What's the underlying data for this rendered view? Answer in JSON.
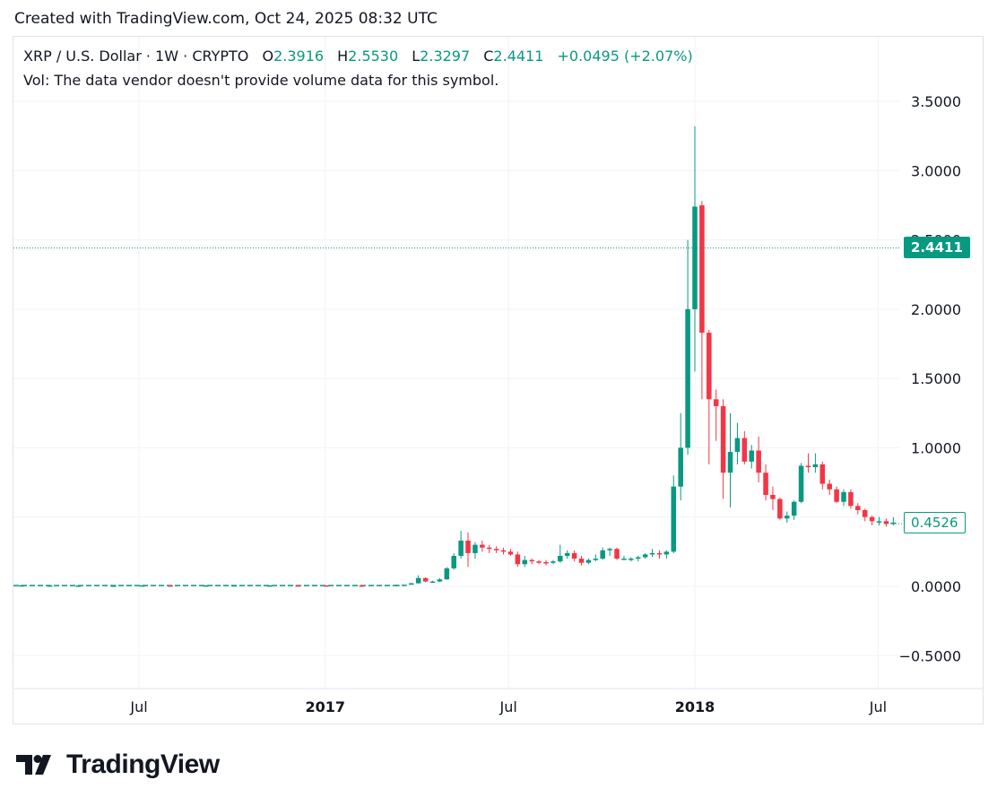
{
  "header": {
    "created_text": "Created with TradingView.com, Oct 24, 2025 08:32 UTC"
  },
  "legend": {
    "symbol": "XRP / U.S. Dollar · 1W · CRYPTO",
    "o_label": "O",
    "o_value": "2.3916",
    "h_label": "H",
    "h_value": "2.5530",
    "l_label": "L",
    "l_value": "2.3297",
    "c_label": "C",
    "c_value": "2.4411",
    "change": "+0.0495 (+2.07%)",
    "volume_note": "Vol: The data vendor doesn't provide volume data for this symbol."
  },
  "badges": {
    "last_price": "2.4411",
    "current_price": "0.4526"
  },
  "logo": {
    "text": "TradingView"
  },
  "colors": {
    "up": "#089981",
    "down": "#F23645",
    "grid": "#f0f3fa",
    "text": "#131722"
  },
  "chart_data": {
    "type": "candlestick",
    "ylim": [
      -0.75,
      3.85
    ],
    "y_ticks": [
      "3.5000",
      "3.0000",
      "2.5000",
      "2.0000",
      "1.5000",
      "1.0000",
      "0.5000",
      "0.0000",
      "−0.5000"
    ],
    "y_tick_values": [
      3.5,
      3.0,
      2.5,
      2.0,
      1.5,
      1.0,
      0.5,
      0.0,
      -0.5
    ],
    "x_ticks": [
      {
        "label": "Jul",
        "date": "2016-07-01",
        "bold": false
      },
      {
        "label": "2017",
        "date": "2017-01-01",
        "bold": true
      },
      {
        "label": "Jul",
        "date": "2017-07-01",
        "bold": false
      },
      {
        "label": "2018",
        "date": "2018-01-01",
        "bold": true
      },
      {
        "label": "Jul",
        "date": "2018-07-01",
        "bold": false
      }
    ],
    "last_price_line": 2.4411,
    "current_price": 0.4526,
    "candles": [
      {
        "d": "2016-01-04",
        "o": 0.006,
        "h": 0.006,
        "l": 0.005,
        "c": 0.006
      },
      {
        "d": "2016-02-01",
        "o": 0.006,
        "h": 0.006,
        "l": 0.005,
        "c": 0.005
      },
      {
        "d": "2016-03-07",
        "o": 0.008,
        "h": 0.009,
        "l": 0.007,
        "c": 0.008
      },
      {
        "d": "2016-04-04",
        "o": 0.007,
        "h": 0.008,
        "l": 0.006,
        "c": 0.007
      },
      {
        "d": "2016-05-02",
        "o": 0.006,
        "h": 0.007,
        "l": 0.005,
        "c": 0.006
      },
      {
        "d": "2016-06-06",
        "o": 0.006,
        "h": 0.007,
        "l": 0.005,
        "c": 0.006
      },
      {
        "d": "2016-07-04",
        "o": 0.006,
        "h": 0.007,
        "l": 0.006,
        "c": 0.007
      },
      {
        "d": "2016-08-01",
        "o": 0.007,
        "h": 0.007,
        "l": 0.006,
        "c": 0.006
      },
      {
        "d": "2016-09-05",
        "o": 0.007,
        "h": 0.008,
        "l": 0.006,
        "c": 0.007
      },
      {
        "d": "2016-10-03",
        "o": 0.008,
        "h": 0.009,
        "l": 0.007,
        "c": 0.008
      },
      {
        "d": "2016-11-07",
        "o": 0.007,
        "h": 0.008,
        "l": 0.007,
        "c": 0.007
      },
      {
        "d": "2016-12-05",
        "o": 0.007,
        "h": 0.007,
        "l": 0.006,
        "c": 0.006
      },
      {
        "d": "2017-01-02",
        "o": 0.007,
        "h": 0.007,
        "l": 0.006,
        "c": 0.006
      },
      {
        "d": "2017-02-06",
        "o": 0.007,
        "h": 0.007,
        "l": 0.006,
        "c": 0.006
      },
      {
        "d": "2017-03-13",
        "o": 0.01,
        "h": 0.012,
        "l": 0.008,
        "c": 0.011
      },
      {
        "d": "2017-03-20",
        "o": 0.011,
        "h": 0.013,
        "l": 0.009,
        "c": 0.012
      },
      {
        "d": "2017-03-27",
        "o": 0.012,
        "h": 0.025,
        "l": 0.011,
        "c": 0.022
      },
      {
        "d": "2017-04-03",
        "o": 0.022,
        "h": 0.08,
        "l": 0.02,
        "c": 0.06
      },
      {
        "d": "2017-04-10",
        "o": 0.06,
        "h": 0.065,
        "l": 0.03,
        "c": 0.035
      },
      {
        "d": "2017-04-17",
        "o": 0.035,
        "h": 0.04,
        "l": 0.03,
        "c": 0.035
      },
      {
        "d": "2017-04-24",
        "o": 0.035,
        "h": 0.06,
        "l": 0.03,
        "c": 0.05
      },
      {
        "d": "2017-05-01",
        "o": 0.05,
        "h": 0.14,
        "l": 0.048,
        "c": 0.13
      },
      {
        "d": "2017-05-08",
        "o": 0.13,
        "h": 0.24,
        "l": 0.12,
        "c": 0.22
      },
      {
        "d": "2017-05-15",
        "o": 0.22,
        "h": 0.4,
        "l": 0.2,
        "c": 0.33
      },
      {
        "d": "2017-05-22",
        "o": 0.33,
        "h": 0.39,
        "l": 0.14,
        "c": 0.24
      },
      {
        "d": "2017-05-29",
        "o": 0.24,
        "h": 0.32,
        "l": 0.2,
        "c": 0.3
      },
      {
        "d": "2017-06-05",
        "o": 0.3,
        "h": 0.33,
        "l": 0.25,
        "c": 0.28
      },
      {
        "d": "2017-06-12",
        "o": 0.28,
        "h": 0.3,
        "l": 0.24,
        "c": 0.27
      },
      {
        "d": "2017-06-19",
        "o": 0.27,
        "h": 0.29,
        "l": 0.24,
        "c": 0.26
      },
      {
        "d": "2017-06-26",
        "o": 0.26,
        "h": 0.28,
        "l": 0.23,
        "c": 0.25
      },
      {
        "d": "2017-07-03",
        "o": 0.25,
        "h": 0.27,
        "l": 0.22,
        "c": 0.23
      },
      {
        "d": "2017-07-10",
        "o": 0.23,
        "h": 0.25,
        "l": 0.14,
        "c": 0.16
      },
      {
        "d": "2017-07-17",
        "o": 0.16,
        "h": 0.22,
        "l": 0.14,
        "c": 0.19
      },
      {
        "d": "2017-07-24",
        "o": 0.19,
        "h": 0.2,
        "l": 0.16,
        "c": 0.18
      },
      {
        "d": "2017-07-31",
        "o": 0.18,
        "h": 0.19,
        "l": 0.16,
        "c": 0.175
      },
      {
        "d": "2017-08-07",
        "o": 0.175,
        "h": 0.19,
        "l": 0.15,
        "c": 0.17
      },
      {
        "d": "2017-08-14",
        "o": 0.17,
        "h": 0.19,
        "l": 0.16,
        "c": 0.18
      },
      {
        "d": "2017-08-21",
        "o": 0.18,
        "h": 0.3,
        "l": 0.17,
        "c": 0.22
      },
      {
        "d": "2017-08-28",
        "o": 0.22,
        "h": 0.26,
        "l": 0.2,
        "c": 0.24
      },
      {
        "d": "2017-09-04",
        "o": 0.24,
        "h": 0.26,
        "l": 0.18,
        "c": 0.2
      },
      {
        "d": "2017-09-11",
        "o": 0.2,
        "h": 0.22,
        "l": 0.15,
        "c": 0.17
      },
      {
        "d": "2017-09-18",
        "o": 0.17,
        "h": 0.2,
        "l": 0.16,
        "c": 0.19
      },
      {
        "d": "2017-09-25",
        "o": 0.19,
        "h": 0.23,
        "l": 0.18,
        "c": 0.2
      },
      {
        "d": "2017-10-02",
        "o": 0.2,
        "h": 0.28,
        "l": 0.19,
        "c": 0.26
      },
      {
        "d": "2017-10-09",
        "o": 0.26,
        "h": 0.28,
        "l": 0.22,
        "c": 0.27
      },
      {
        "d": "2017-10-16",
        "o": 0.27,
        "h": 0.28,
        "l": 0.19,
        "c": 0.2
      },
      {
        "d": "2017-10-23",
        "o": 0.2,
        "h": 0.22,
        "l": 0.19,
        "c": 0.2
      },
      {
        "d": "2017-10-30",
        "o": 0.2,
        "h": 0.21,
        "l": 0.18,
        "c": 0.2
      },
      {
        "d": "2017-11-06",
        "o": 0.2,
        "h": 0.22,
        "l": 0.18,
        "c": 0.21
      },
      {
        "d": "2017-11-13",
        "o": 0.21,
        "h": 0.24,
        "l": 0.2,
        "c": 0.23
      },
      {
        "d": "2017-11-20",
        "o": 0.23,
        "h": 0.27,
        "l": 0.21,
        "c": 0.24
      },
      {
        "d": "2017-11-27",
        "o": 0.24,
        "h": 0.26,
        "l": 0.2,
        "c": 0.23
      },
      {
        "d": "2017-12-04",
        "o": 0.23,
        "h": 0.26,
        "l": 0.2,
        "c": 0.25
      },
      {
        "d": "2017-12-11",
        "o": 0.25,
        "h": 0.8,
        "l": 0.24,
        "c": 0.72
      },
      {
        "d": "2017-12-18",
        "o": 0.72,
        "h": 1.25,
        "l": 0.62,
        "c": 1.0
      },
      {
        "d": "2017-12-25",
        "o": 1.0,
        "h": 2.5,
        "l": 0.95,
        "c": 2.0
      },
      {
        "d": "2018-01-01",
        "o": 2.0,
        "h": 3.32,
        "l": 1.55,
        "c": 2.74
      },
      {
        "d": "2018-01-08",
        "o": 2.75,
        "h": 2.78,
        "l": 1.35,
        "c": 1.83
      },
      {
        "d": "2018-01-15",
        "o": 1.83,
        "h": 1.85,
        "l": 0.88,
        "c": 1.35
      },
      {
        "d": "2018-01-22",
        "o": 1.35,
        "h": 1.42,
        "l": 1.05,
        "c": 1.3
      },
      {
        "d": "2018-01-29",
        "o": 1.3,
        "h": 1.35,
        "l": 0.63,
        "c": 0.82
      },
      {
        "d": "2018-02-05",
        "o": 0.82,
        "h": 1.25,
        "l": 0.57,
        "c": 0.97
      },
      {
        "d": "2018-02-12",
        "o": 0.97,
        "h": 1.18,
        "l": 0.88,
        "c": 1.07
      },
      {
        "d": "2018-02-19",
        "o": 1.07,
        "h": 1.12,
        "l": 0.88,
        "c": 0.9
      },
      {
        "d": "2018-02-26",
        "o": 0.9,
        "h": 1.02,
        "l": 0.85,
        "c": 0.98
      },
      {
        "d": "2018-03-05",
        "o": 0.98,
        "h": 1.08,
        "l": 0.75,
        "c": 0.82
      },
      {
        "d": "2018-03-12",
        "o": 0.82,
        "h": 0.88,
        "l": 0.62,
        "c": 0.66
      },
      {
        "d": "2018-03-19",
        "o": 0.66,
        "h": 0.72,
        "l": 0.55,
        "c": 0.63
      },
      {
        "d": "2018-03-26",
        "o": 0.63,
        "h": 0.64,
        "l": 0.48,
        "c": 0.49
      },
      {
        "d": "2018-04-02",
        "o": 0.49,
        "h": 0.54,
        "l": 0.46,
        "c": 0.51
      },
      {
        "d": "2018-04-09",
        "o": 0.51,
        "h": 0.62,
        "l": 0.48,
        "c": 0.61
      },
      {
        "d": "2018-04-16",
        "o": 0.61,
        "h": 0.89,
        "l": 0.6,
        "c": 0.87
      },
      {
        "d": "2018-04-23",
        "o": 0.87,
        "h": 0.96,
        "l": 0.82,
        "c": 0.86
      },
      {
        "d": "2018-04-30",
        "o": 0.86,
        "h": 0.96,
        "l": 0.82,
        "c": 0.88
      },
      {
        "d": "2018-05-07",
        "o": 0.88,
        "h": 0.9,
        "l": 0.7,
        "c": 0.74
      },
      {
        "d": "2018-05-14",
        "o": 0.74,
        "h": 0.77,
        "l": 0.66,
        "c": 0.7
      },
      {
        "d": "2018-05-21",
        "o": 0.7,
        "h": 0.72,
        "l": 0.6,
        "c": 0.61
      },
      {
        "d": "2018-05-28",
        "o": 0.61,
        "h": 0.7,
        "l": 0.58,
        "c": 0.68
      },
      {
        "d": "2018-06-04",
        "o": 0.68,
        "h": 0.7,
        "l": 0.56,
        "c": 0.58
      },
      {
        "d": "2018-06-11",
        "o": 0.58,
        "h": 0.6,
        "l": 0.52,
        "c": 0.55
      },
      {
        "d": "2018-06-18",
        "o": 0.55,
        "h": 0.56,
        "l": 0.47,
        "c": 0.5
      },
      {
        "d": "2018-06-25",
        "o": 0.5,
        "h": 0.51,
        "l": 0.44,
        "c": 0.47
      },
      {
        "d": "2018-07-02",
        "o": 0.47,
        "h": 0.5,
        "l": 0.44,
        "c": 0.47
      },
      {
        "d": "2018-07-09",
        "o": 0.47,
        "h": 0.49,
        "l": 0.43,
        "c": 0.45
      },
      {
        "d": "2018-07-16",
        "o": 0.45,
        "h": 0.5,
        "l": 0.44,
        "c": 0.46
      }
    ]
  }
}
